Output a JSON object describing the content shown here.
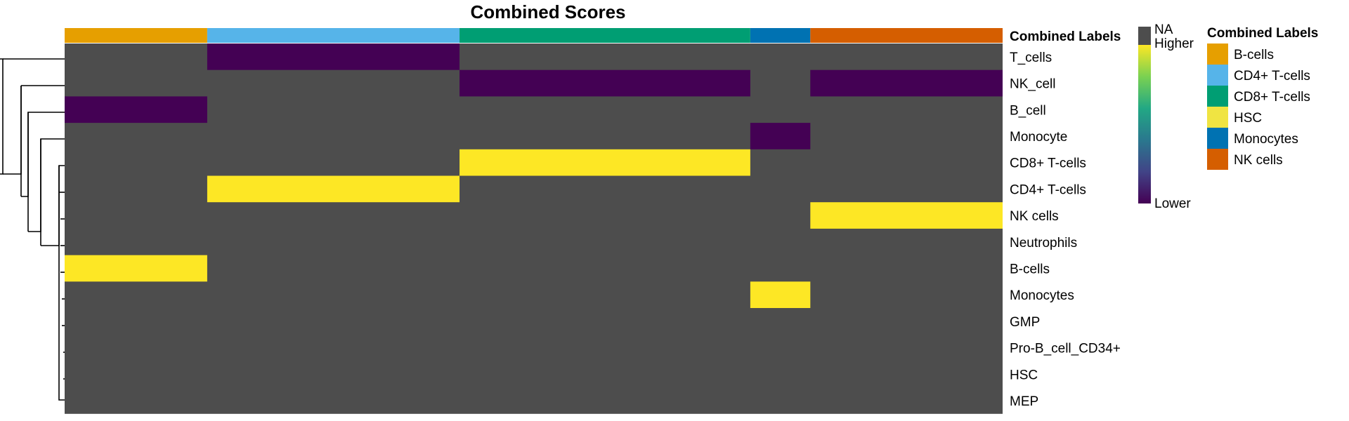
{
  "chart_data": {
    "type": "heatmap",
    "title": "Combined Scores",
    "annotation_title": "Combined Labels",
    "na_color": "#4d4d4d",
    "groups": [
      {
        "label": "B-cells",
        "color": "#e69f00",
        "fraction": 0.152
      },
      {
        "label": "CD4+ T-cells",
        "color": "#56b4e9",
        "fraction": 0.269
      },
      {
        "label": "CD8+ T-cells",
        "color": "#009e73",
        "fraction": 0.31
      },
      {
        "label": "Monocytes",
        "color": "#0072b2",
        "fraction": 0.064
      },
      {
        "label": "NK cells",
        "color": "#d55e00",
        "fraction": 0.205
      }
    ],
    "rows": [
      "T_cells",
      "NK_cell",
      "B_cell",
      "Monocyte",
      "CD8+ T-cells",
      "CD4+ T-cells",
      "NK cells",
      "Neutrophils",
      "B-cells",
      "Monocytes",
      "GMP",
      "Pro-B_cell_CD34+",
      "HSC",
      "MEP"
    ],
    "cell_values": {
      "description_scale": "1 = higher, 0 = lower, null = NA",
      "matrix_by_group": [
        [
          null,
          0,
          null,
          null,
          null
        ],
        [
          null,
          null,
          0,
          null,
          0
        ],
        [
          0,
          null,
          null,
          null,
          null
        ],
        [
          null,
          null,
          null,
          0,
          null
        ],
        [
          null,
          null,
          1,
          null,
          null
        ],
        [
          null,
          1,
          null,
          null,
          null
        ],
        [
          null,
          null,
          null,
          null,
          1
        ],
        [
          null,
          null,
          null,
          null,
          null
        ],
        [
          1,
          null,
          null,
          null,
          null
        ],
        [
          null,
          null,
          null,
          1,
          null
        ],
        [
          null,
          null,
          null,
          null,
          null
        ],
        [
          null,
          null,
          null,
          null,
          null
        ],
        [
          null,
          null,
          null,
          null,
          null
        ],
        [
          null,
          null,
          null,
          null,
          null
        ]
      ]
    },
    "color_scale": {
      "na_label": "NA",
      "high_label": "Higher",
      "low_label": "Lower",
      "high_color": "#fde725",
      "mid_color": "#21908c",
      "low_color": "#440154"
    },
    "legend": {
      "title": "Combined Labels",
      "position": "right",
      "items": [
        {
          "label": "B-cells",
          "color": "#e69f00"
        },
        {
          "label": "CD4+ T-cells",
          "color": "#56b4e9"
        },
        {
          "label": "CD8+ T-cells",
          "color": "#009e73"
        },
        {
          "label": "HSC",
          "color": "#f0e442"
        },
        {
          "label": "Monocytes",
          "color": "#0072b2"
        },
        {
          "label": "NK cells",
          "color": "#d55e00"
        }
      ]
    },
    "grid": false
  }
}
